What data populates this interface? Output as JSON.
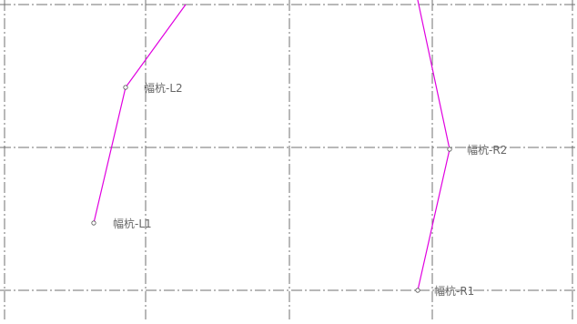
{
  "labels": {
    "l1": "幅杭-L1",
    "l2": "幅杭-L2",
    "r1": "幅杭-R1",
    "r2": "幅杭-R2"
  },
  "colors": {
    "route": "#e000e0",
    "grid": "#707070",
    "label": "#666666",
    "background": "#ffffff"
  }
}
